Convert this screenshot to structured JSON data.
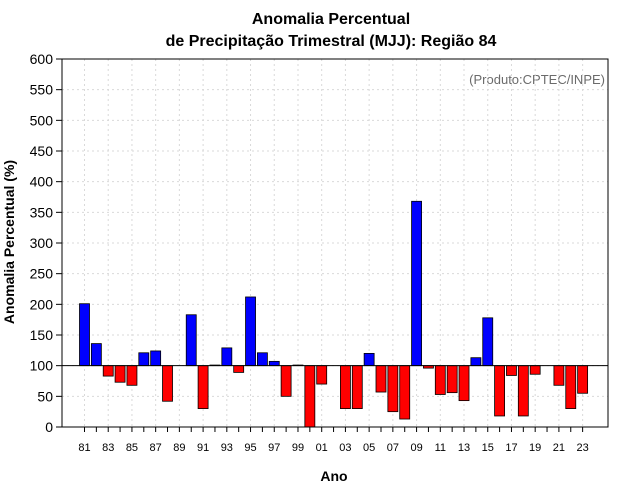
{
  "chart_data": {
    "type": "bar",
    "title_line1": "Anomalia Percentual",
    "title_line2": "de Precipitação Trimestral (MJJ): Região 84",
    "xlabel": "Ano",
    "ylabel": "Anomalia Percentual (%)",
    "annotation": "(Produto:CPTEC/INPE)",
    "ylim": [
      0,
      600
    ],
    "yticks": [
      0,
      50,
      100,
      150,
      200,
      250,
      300,
      350,
      400,
      450,
      500,
      550,
      600
    ],
    "baseline": 100,
    "grid": true,
    "categories": [
      "81",
      "82",
      "83",
      "84",
      "85",
      "86",
      "87",
      "88",
      "89",
      "90",
      "91",
      "92",
      "93",
      "94",
      "95",
      "96",
      "97",
      "98",
      "99",
      "00",
      "01",
      "02",
      "03",
      "04",
      "05",
      "06",
      "07",
      "08",
      "09",
      "10",
      "11",
      "12",
      "13",
      "14",
      "15",
      "16",
      "17",
      "18",
      "19",
      "20",
      "21",
      "22",
      "23"
    ],
    "xtick_labels": [
      "81",
      "83",
      "85",
      "87",
      "89",
      "91",
      "93",
      "95",
      "97",
      "99",
      "01",
      "03",
      "05",
      "07",
      "09",
      "11",
      "13",
      "15",
      "17",
      "19",
      "21",
      "23"
    ],
    "values": [
      201,
      136,
      83,
      73,
      68,
      121,
      124,
      42,
      100,
      183,
      30,
      101,
      129,
      89,
      212,
      121,
      107,
      50,
      101,
      0,
      70,
      100,
      30,
      30,
      120,
      57,
      25,
      13,
      368,
      96,
      53,
      56,
      43,
      113,
      178,
      18,
      84,
      18,
      86,
      100,
      68,
      30,
      55
    ],
    "colors": {
      "above": "#0000ff",
      "below": "#ff0000",
      "baseline_line": "#000000",
      "grid": "#d9d9d9"
    }
  }
}
